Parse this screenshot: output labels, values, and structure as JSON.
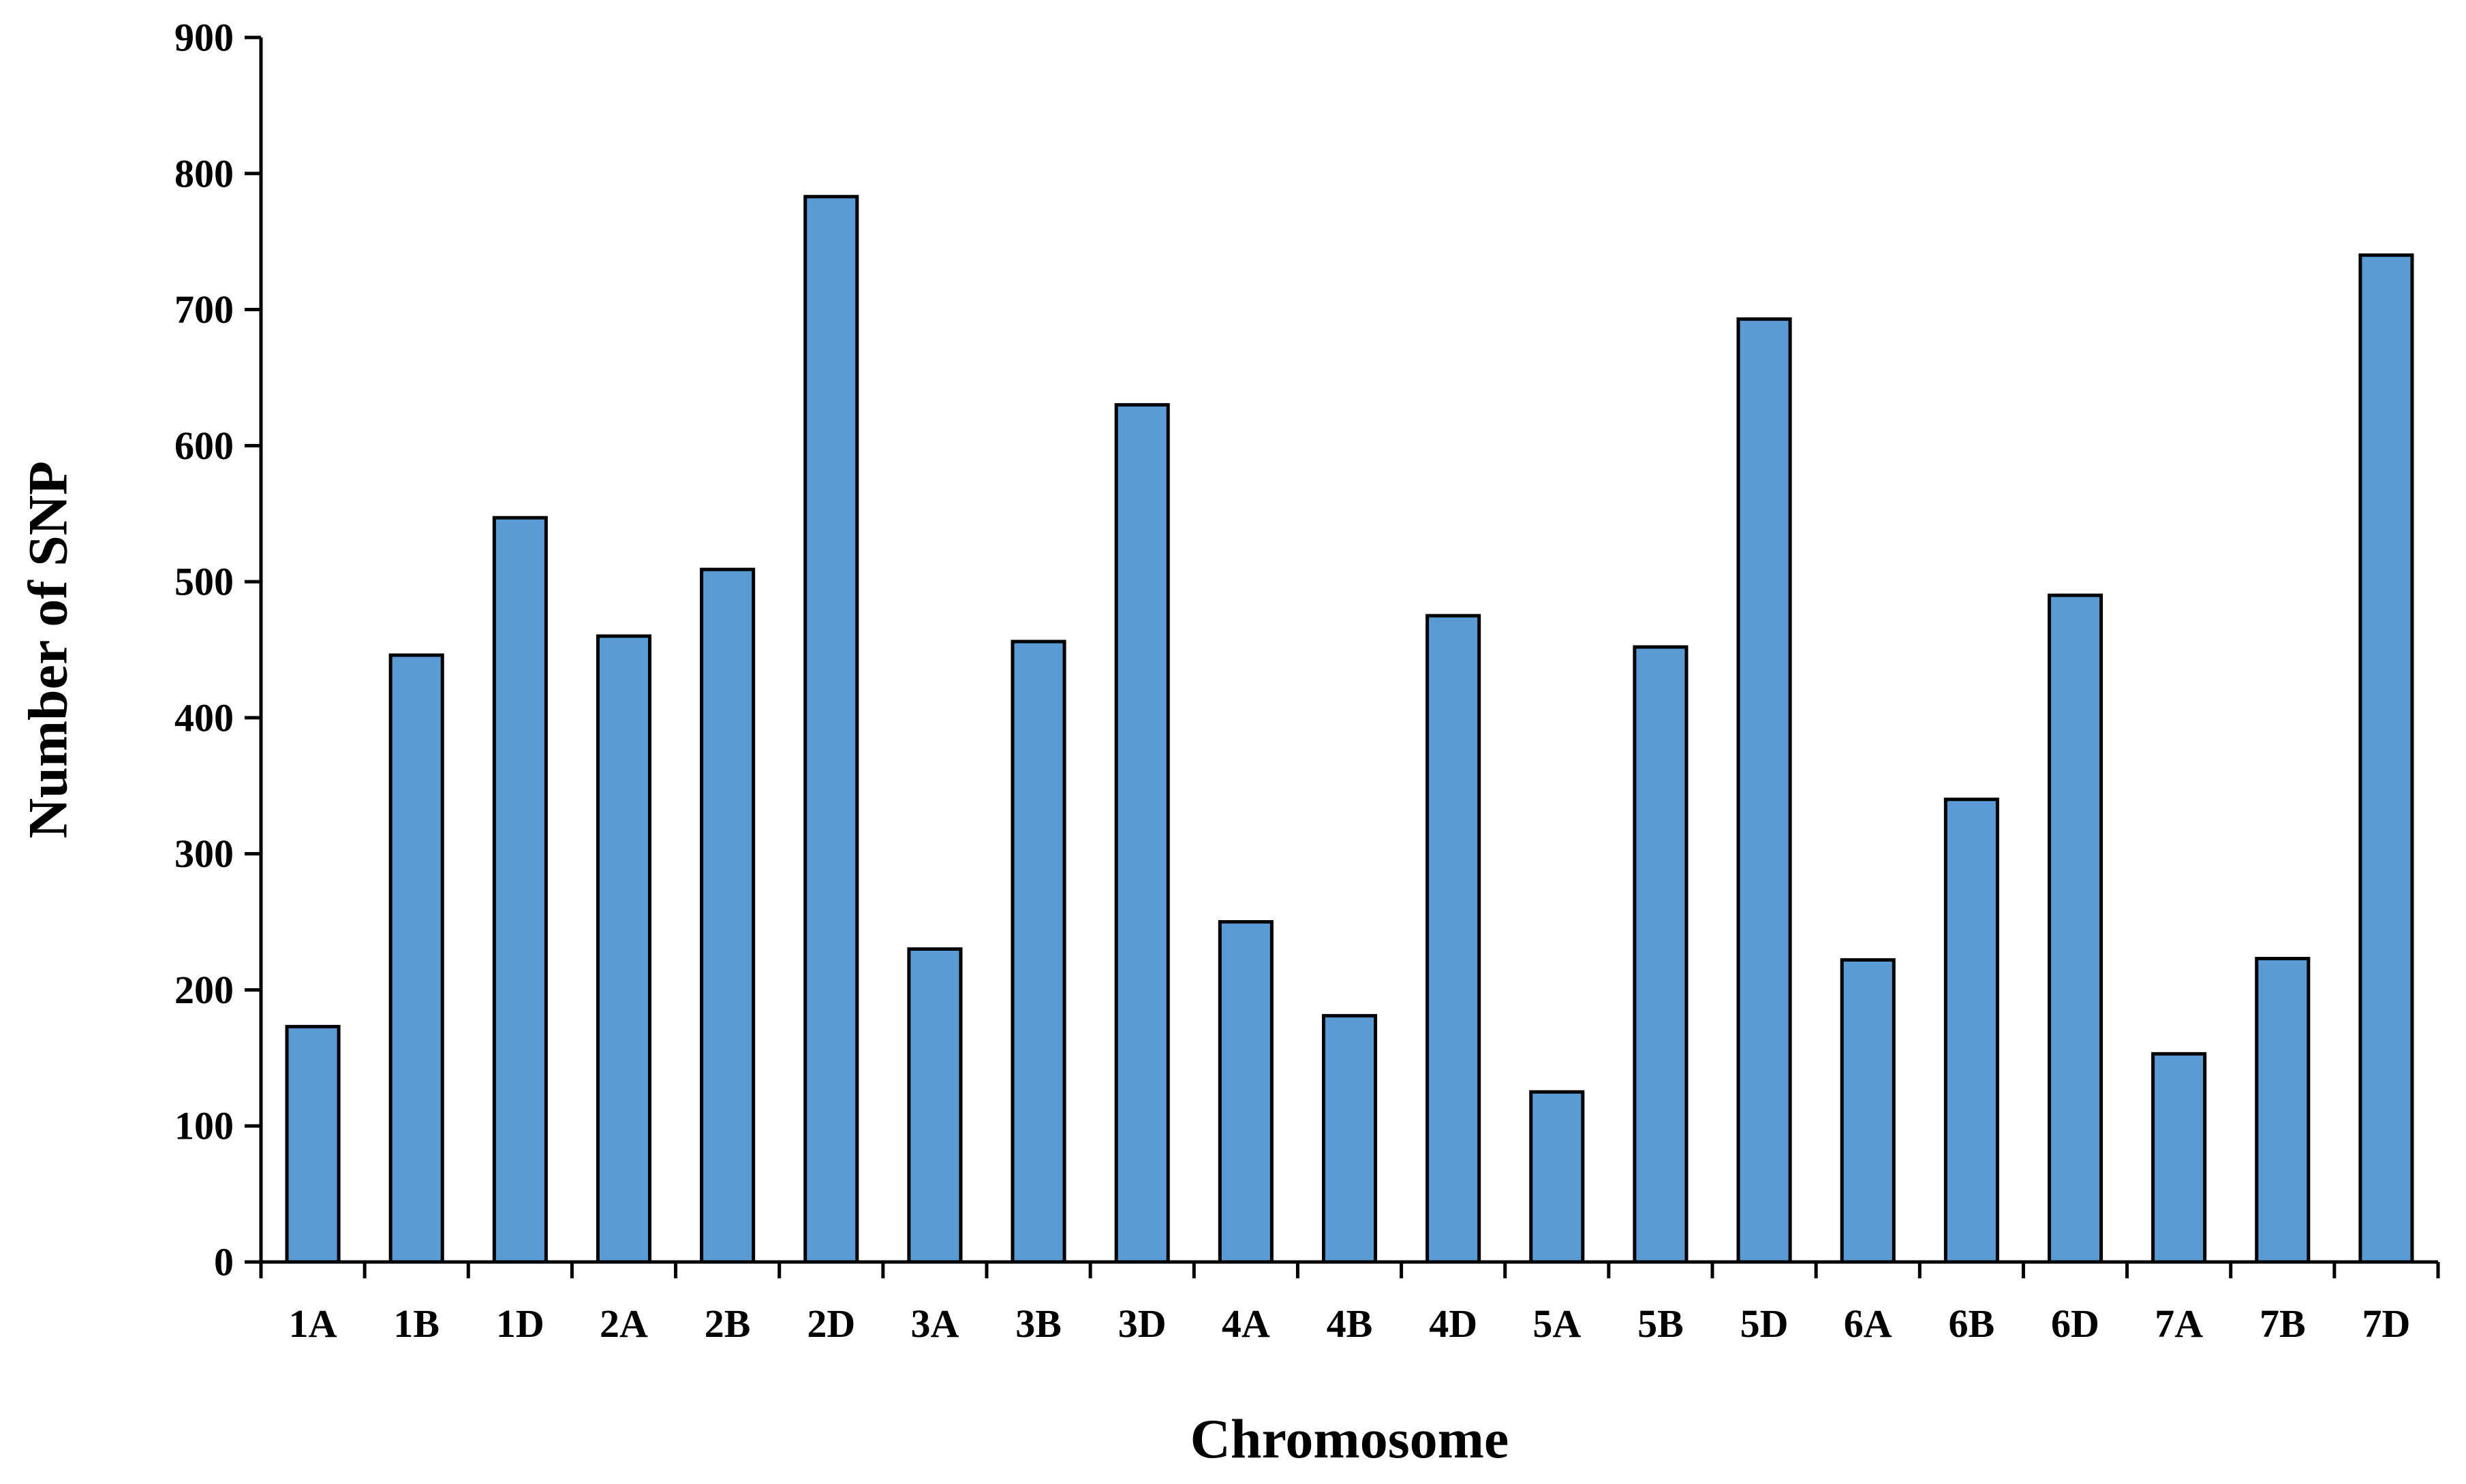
{
  "chart_data": {
    "type": "bar",
    "categories": [
      "1A",
      "1B",
      "1D",
      "2A",
      "2B",
      "2D",
      "3A",
      "3B",
      "3D",
      "4A",
      "4B",
      "4D",
      "5A",
      "5B",
      "5D",
      "6A",
      "6B",
      "6D",
      "7A",
      "7B",
      "7D"
    ],
    "values": [
      173,
      446,
      547,
      460,
      509,
      783,
      230,
      456,
      630,
      250,
      181,
      475,
      125,
      452,
      693,
      222,
      340,
      490,
      153,
      223,
      740
    ],
    "title": "",
    "xlabel": "Chromosome",
    "ylabel": "Number of SNP",
    "ylim": [
      0,
      900
    ],
    "yticks": [
      0,
      100,
      200,
      300,
      400,
      500,
      600,
      700,
      800,
      900
    ],
    "grid": false,
    "legend": "none",
    "bar_color": "#5b9bd5"
  }
}
